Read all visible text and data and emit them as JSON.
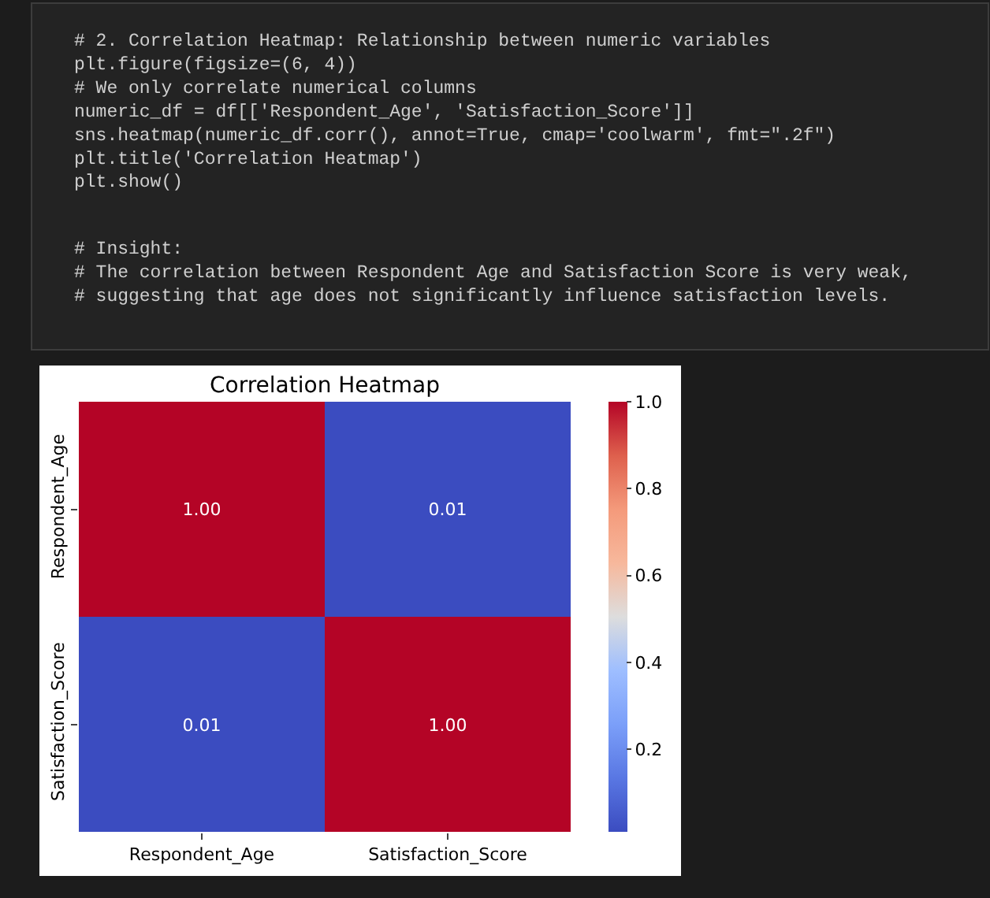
{
  "chart_data": {
    "type": "heatmap",
    "title": "Correlation Heatmap",
    "categories": [
      "Respondent_Age",
      "Satisfaction_Score"
    ],
    "y_categories": [
      "Respondent_Age",
      "Satisfaction_Score"
    ],
    "cells": [
      [
        1.0,
        0.01
      ],
      [
        0.01,
        1.0
      ]
    ],
    "cell_labels": [
      [
        "1.00",
        "0.01"
      ],
      [
        "0.01",
        "1.00"
      ]
    ],
    "clim": [
      0.01,
      1.0
    ],
    "cticks": [
      0.2,
      0.4,
      0.6,
      0.8,
      {
        "value": 1.0,
        "label": "1.0"
      }
    ],
    "annotations": [
      "# 2. Correlation Heatmap: Relationship between numeric variables\nplt.figure(figsize=(6, 4))\n# We only correlate numerical columns\nnumeric_df = df[['Respondent_Age', 'Satisfaction_Score']]\nsns.heatmap(numeric_df.corr(), annot=True, cmap='coolwarm', fmt=\".2f\")\nplt.title('Correlation Heatmap')\nplt.show()",
      "# Insight:\n# The correlation between Respondent Age and Satisfaction Score is very weak,\n# suggesting that age does not significantly influence satisfaction levels."
    ]
  }
}
